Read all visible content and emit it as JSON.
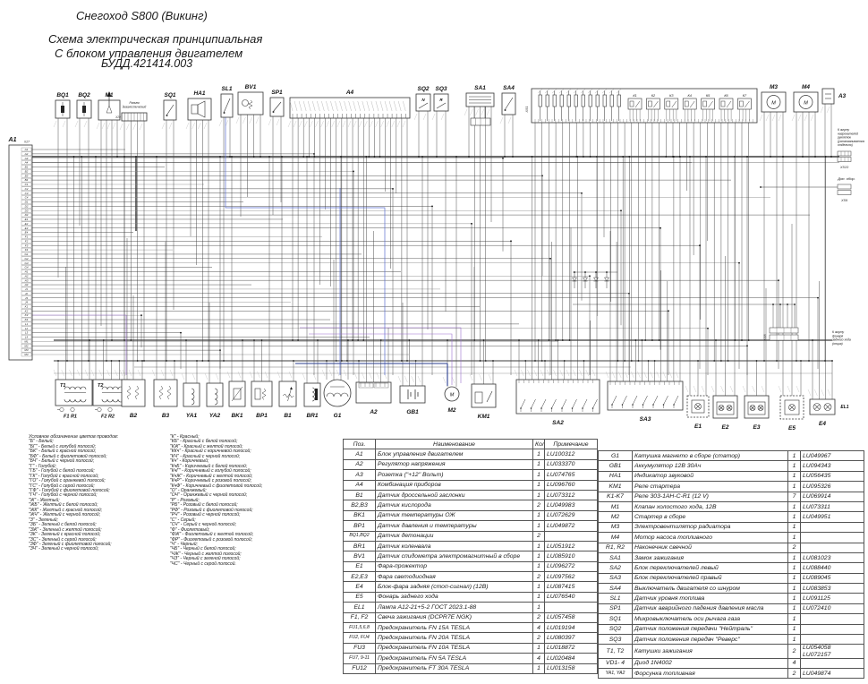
{
  "title": {
    "line1": "Снегоход S800 (Викинг)",
    "line2": "Схема электрическая принципиальная",
    "line3": "С блоком управления двигателем",
    "line4": "БУДД.421414.003"
  },
  "legend": {
    "heading": "Условное обозначение цветов проводов:",
    "col1": [
      "\"Б\" - Белый;",
      "\"БГ\" - Белый с голубой полосой;",
      "\"БК\" - Белый с красной полосой;",
      "\"БФ\" - Белый с фиолетовой полосой;",
      "\"БЧ\" - Белый с черной полосой;",
      "\"Г\" - Голубой;",
      "\"ГБ\" - Голубой с белой полосой;",
      "\"ГК\" - Голубой с красной полосой;",
      "\"ГО\" - Голубой с оранжевой полосой;",
      "\"ГС\" - Голубой с серой полосой;",
      "\"ГФ\" - Голубой с фиолетовой полосой;",
      "\"ГЧ\" - Голубой с черной полосой;",
      "\"Ж\" - Желтый;",
      "\"ЖБ\" - Желтый с белой полосой;",
      "\"ЖК\" - Желтый с красной полосой;",
      "\"ЖЧ\" - Желтый с черной полосой;",
      "\"З\" - Зеленый;",
      "\"ЗБ\" - Зеленый с белой полосой;",
      "\"ЗЖ\" - Зеленый с желтой полосой;",
      "\"ЗК\" - Зеленый с красной полосой;",
      "\"ЗС\" - Зеленый с серой полосой;",
      "\"ЗФ\" - Зеленый с фиолетовой полосой;",
      "\"ЗЧ\" - Зеленый с черной полосой;"
    ],
    "col2": [
      "\"К\" - Красный;",
      "\"КБ\" - Красный с белой полосой;",
      "\"КЖ\" - Красный с желтой полосой;",
      "\"ККч\" - Красный с коричневой полосой;",
      "\"КЧ\" - Красный с черной полосой;",
      "\"Кч\" - Коричневый;",
      "\"КчБ\" - Коричневый с белой полосой;",
      "\"КчГ\" - Коричневый с голубой полосой;",
      "\"КчЖ\" - Коричневый с желтой полосой;",
      "\"КчР\" - Коричневый с розовой полосой;",
      "\"КчФ\" - Коричневый с фиолетовой полосой;",
      "\"О\" - Оранжевый;",
      "\"ОЧ\" - Оранжевый с черной полосой;",
      "\"Р\" - Розовый;",
      "\"РБ\" - Розовый с белой полосой;",
      "\"РФ\" - Розовый с фиолетовой полосой;",
      "\"РЧ\" - Розовый с черной полосой;",
      "\"С\" - Серый;",
      "\"СЧ\" - Серый с черной полосой;",
      "\"Ф\" - Фиолетовый;",
      "\"ФЖ\" - Фиолетовый с желтой полосой;",
      "\"ФР\" - Фиолетовый с розовой полосой;",
      "\"Ч\" - Черный;",
      "\"ЧБ\" - Черный с белой полосой;",
      "\"ЧЖ\" - Черный с желтой полосой;",
      "\"ЧЗ\" - Черный с зеленой полосой;",
      "\"ЧС\" - Черный с серой полосой."
    ]
  },
  "tables": {
    "left": {
      "headers": [
        "Поз.",
        "Наименование",
        "Кол",
        "Примечание"
      ],
      "rows": [
        [
          "A1",
          "Блок управления двигателем",
          "1",
          "LU100312"
        ],
        [
          "A2",
          "Регулятор напряжения",
          "1",
          "LU033370"
        ],
        [
          "A3",
          "Розетка (\"+12\" Вольт)",
          "1",
          "LU074765"
        ],
        [
          "A4",
          "Комбинация приборов",
          "1",
          "LU096760"
        ],
        [
          "B1",
          "Датчик дроссельной заслонки",
          "1",
          "LU073312"
        ],
        [
          "B2,B3",
          "Датчик кислорода",
          "2",
          "LU049983"
        ],
        [
          "BK1",
          "Датчик температуры ОЖ",
          "1",
          "LU072629"
        ],
        [
          "BP1",
          "Датчик давления и температуры",
          "1",
          "LU049872"
        ],
        [
          "BQ1,BQ2",
          "Датчик детонации",
          "2",
          ""
        ],
        [
          "BR1",
          "Датчик коленвала",
          "1",
          "LU051912"
        ],
        [
          "BV1",
          "Датчик спидометра электромагнитный в сборе",
          "1",
          "LU085910"
        ],
        [
          "E1",
          "Фара-прожектор",
          "1",
          "LU096272"
        ],
        [
          "E2,E3",
          "Фара светодиодная",
          "2",
          "LU097562"
        ],
        [
          "E4",
          "Блок-фара задняя (стоп-сигнал) (12В)",
          "1",
          "LU087415"
        ],
        [
          "E5",
          "Фонарь заднего хода",
          "1",
          "LU076540"
        ],
        [
          "EL1",
          "Лампа А12-21+5-2 ГОСТ 2023.1-88",
          "1",
          ""
        ],
        [
          "F1, F2",
          "Свеча зажигания (DCPR7E NGK)",
          "2",
          "LU057458"
        ],
        [
          "FU1,5,6,8",
          "Предохранитель FN 15A TESLA",
          "4",
          "LU019194"
        ],
        [
          "FU2, FU4",
          "Предохранитель FN 20A TESLA",
          "2",
          "LU080397"
        ],
        [
          "FU3",
          "Предохранитель FN 10A TESLA",
          "1",
          "LU018872"
        ],
        [
          "FU7, 9-11",
          "Предохранитель FN 5A TESLA",
          "4",
          "LU020484"
        ],
        [
          "FU12",
          "Предохранитель FT 30A TESLA",
          "1",
          "LU013158"
        ]
      ]
    },
    "right": {
      "rows": [
        [
          "G1",
          "Катушка магнето в сборе (статор)",
          "1",
          "LU049967"
        ],
        [
          "GB1",
          "Аккумулятор 12В 30Ач",
          "1",
          "LU094343"
        ],
        [
          "HA1",
          "Индикатор звуковой",
          "1",
          "LU056435"
        ],
        [
          "KM1",
          "Реле стартера",
          "1",
          "LU095326"
        ],
        [
          "K1-K7",
          "Реле 303-1АН-С-R1 (12 V)",
          "7",
          "LU069914"
        ],
        [
          "M1",
          "Клапан холостого хода, 12В",
          "1",
          "LU073311"
        ],
        [
          "M2",
          "Стартер в сборе",
          "1",
          "LU049951"
        ],
        [
          "M3",
          "Электровентилятор радиатора",
          "1",
          ""
        ],
        [
          "M4",
          "Мотор насоса топливного",
          "1",
          ""
        ],
        [
          "R1, R2",
          "Наконечник свечной",
          "2",
          ""
        ],
        [
          "SA1",
          "Замок зажигания",
          "1",
          "LU081023"
        ],
        [
          "SA2",
          "Блок переключателей левый",
          "1",
          "LU088440"
        ],
        [
          "SA3",
          "Блок переключателей правый",
          "1",
          "LU089045"
        ],
        [
          "SA4",
          "Выключатель двигателя со шнуром",
          "1",
          "LU083853"
        ],
        [
          "SL1",
          "Датчик уровня топлива",
          "1",
          "LU091125"
        ],
        [
          "SP1",
          "Датчик аварийного падения давления масла",
          "1",
          "LU072410"
        ],
        [
          "SQ1",
          "Микровыключатель оси рычага газа",
          "1",
          ""
        ],
        [
          "SQ2",
          "Датчик положения передачи \"Нейтраль\"",
          "1",
          ""
        ],
        [
          "SQ3",
          "Датчик положения передач \"Реверс\"",
          "1",
          ""
        ],
        [
          "T1, T2",
          "Катушки зажигания",
          "2",
          "LU054058\nLU072157"
        ],
        [
          "VD1- 4",
          "Диод 1N4002",
          "4",
          ""
        ],
        [
          "YA1, YA2",
          "Форсунка топливная",
          "2",
          "LU049874"
        ]
      ]
    }
  },
  "schematic": {
    "ecu": {
      "label": "A1",
      "connector": "X27",
      "pins": [
        "A1",
        "A2",
        "A3",
        "A4",
        "B1",
        "B2",
        "B3",
        "B4",
        "C1",
        "C2",
        "C3",
        "C4",
        "D1",
        "D2",
        "D3",
        "D4",
        "E1",
        "E2",
        "E3",
        "E4",
        "F1",
        "F2",
        "F3",
        "F4",
        "G1",
        "G2",
        "G3",
        "G4",
        "H1",
        "H2",
        "H3",
        "H4",
        "J1",
        "J2",
        "J3",
        "J4",
        "K1",
        "K2",
        "K3",
        "K4",
        "L1",
        "L2",
        "L3",
        "L4",
        "M1",
        "M2",
        "M3",
        "M4"
      ]
    },
    "diag_label": "Разъем\nдиагностический",
    "diag_connector": "X29",
    "relay_box": {
      "connector": "X51",
      "fuse_count": 12,
      "relays": [
        "К1",
        "К2",
        "К3",
        "К4",
        "К5",
        "К6",
        "К7"
      ]
    },
    "motor_letter": "М",
    "sq2_inner": "N",
    "sq3_inner": "R",
    "top": [
      {
        "id": "BQ1",
        "label": "BQ1"
      },
      {
        "id": "BQ2",
        "label": "BQ2"
      },
      {
        "id": "M1",
        "label": "M1"
      },
      {
        "id": "DIAG",
        "label": ""
      },
      {
        "id": "SQ1",
        "label": "SQ1"
      },
      {
        "id": "HA1",
        "label": "HA1"
      },
      {
        "id": "SL1",
        "label": "SL1"
      },
      {
        "id": "BV1",
        "label": "BV1"
      },
      {
        "id": "SP1",
        "label": "SP1"
      },
      {
        "id": "A4",
        "label": "A4"
      },
      {
        "id": "SQ2",
        "label": "SQ2"
      },
      {
        "id": "SQ3",
        "label": "SQ3"
      },
      {
        "id": "SA1",
        "label": "SA1"
      },
      {
        "id": "SA4",
        "label": "SA4"
      },
      {
        "id": "M3",
        "label": "M3"
      },
      {
        "id": "M4",
        "label": "M4"
      },
      {
        "id": "A3",
        "label": "A3"
      }
    ],
    "bottom": [
      {
        "id": "T1",
        "label": "T1",
        "sub": "F1 R1"
      },
      {
        "id": "T2",
        "label": "T2",
        "sub": "F2 R2"
      },
      {
        "id": "B2",
        "label": "B2"
      },
      {
        "id": "B3",
        "label": "B3"
      },
      {
        "id": "YA1",
        "label": "YA1"
      },
      {
        "id": "YA2",
        "label": "YA2"
      },
      {
        "id": "BK1",
        "label": "BK1"
      },
      {
        "id": "BP1",
        "label": "BP1"
      },
      {
        "id": "B1",
        "label": "B1"
      },
      {
        "id": "BR1",
        "label": "BR1"
      },
      {
        "id": "G1",
        "label": "G1"
      },
      {
        "id": "A2",
        "label": "A2"
      },
      {
        "id": "GB1",
        "label": "GB1"
      },
      {
        "id": "M2",
        "label": "M2"
      },
      {
        "id": "KM1",
        "label": "KM1"
      },
      {
        "id": "SA2",
        "label": "SA2"
      },
      {
        "id": "SA3",
        "label": "SA3"
      },
      {
        "id": "E1",
        "label": "E1"
      },
      {
        "id": "E2",
        "label": "E2"
      },
      {
        "id": "E3",
        "label": "E3"
      },
      {
        "id": "E5",
        "label": "E5"
      },
      {
        "id": "E4",
        "label": "E4",
        "sub": "EL1"
      }
    ],
    "notes": {
      "heater": "К жгуту\nнагревателей\nрукояток\n(устанавливается\nотдельно)",
      "heater_connector": "X510",
      "aux": "Доп. обор.",
      "aux_connector": "X59",
      "reverse": "К жгуту\nфонаря\nзаднего хода\n(опция)",
      "reverse_connector": "X58"
    }
  }
}
